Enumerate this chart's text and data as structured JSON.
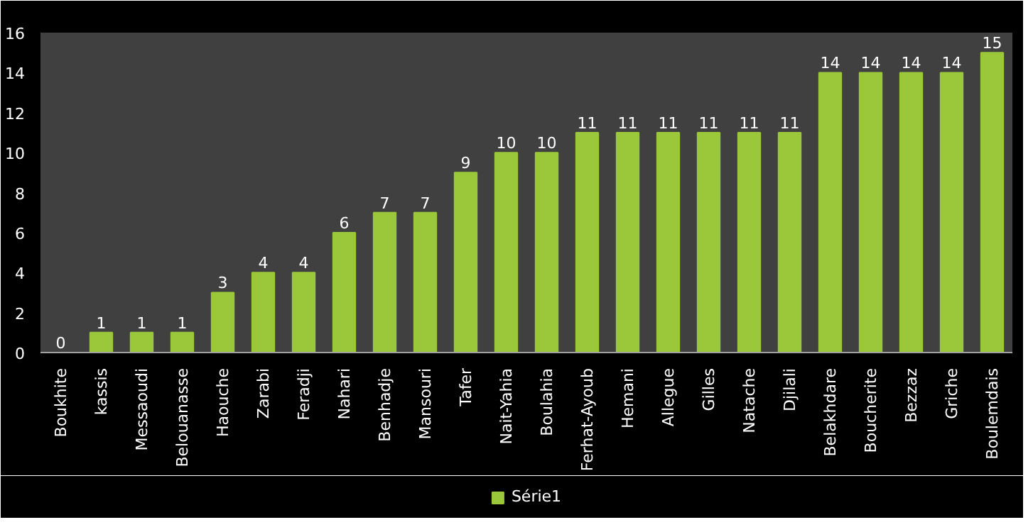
{
  "chart_data": {
    "type": "bar",
    "categories": [
      "Boukhite",
      "kassis",
      "Messaoudi",
      "Belouanasse",
      "Haouche",
      "Zarabi",
      "Feradji",
      "Nahari",
      "Benhadje",
      "Mansouri",
      "Tafer",
      "Nait-Yahia",
      "Boulahia",
      "Ferhat-Ayoub",
      "Hemani",
      "Allegue",
      "Gilles",
      "Natache",
      "Djilali",
      "Belakhdare",
      "Boucherite",
      "Bezzaz",
      "Griche",
      "Boulemdais"
    ],
    "series": [
      {
        "name": "Série1",
        "color": "#9bc83a",
        "values": [
          0,
          1,
          1,
          1,
          3,
          4,
          4,
          6,
          7,
          7,
          9,
          10,
          10,
          11,
          11,
          11,
          11,
          11,
          11,
          14,
          14,
          14,
          14,
          15
        ]
      }
    ],
    "ylim": [
      0,
      16
    ],
    "yticks": [
      0,
      2,
      4,
      6,
      8,
      10,
      12,
      14,
      16
    ],
    "data_labels": true,
    "grid": false,
    "legend": "bottom"
  }
}
